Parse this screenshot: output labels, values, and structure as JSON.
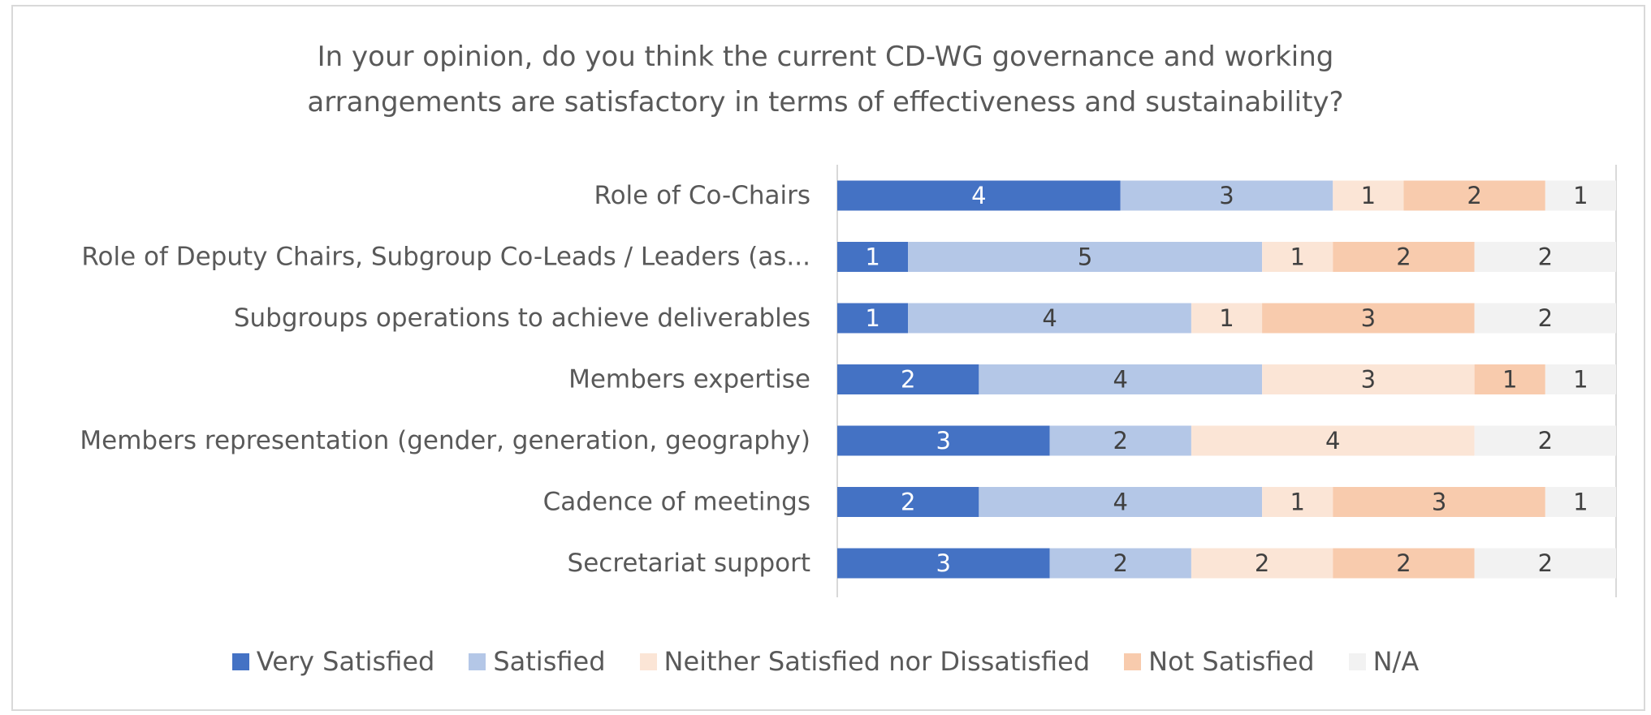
{
  "chart_data": {
    "type": "bar",
    "orientation": "horizontal-stacked",
    "title": [
      "In your opinion, do you think the  current CD-WG governance and working",
      "arrangements are satisfactory in terms of effectiveness and sustainability?"
    ],
    "categories": [
      "Role of Co-Chairs",
      "Role of Deputy Chairs, Subgroup Co-Leads / Leaders (as...",
      "Subgroups operations to achieve deliverables",
      "Members expertise",
      "Members representation (gender, generation, geography)",
      "Cadence of meetings",
      "Secretariat support"
    ],
    "series": [
      {
        "name": "Very Satisfied",
        "color": "#4472c4",
        "label_color": "#ffffff",
        "values": [
          4,
          1,
          1,
          2,
          3,
          2,
          3
        ]
      },
      {
        "name": "Satisfied",
        "color": "#b4c7e7",
        "label_color": "#404040",
        "values": [
          3,
          5,
          4,
          4,
          2,
          4,
          2
        ]
      },
      {
        "name": "Neither Satisfied nor Dissatisfied",
        "color": "#fbe5d6",
        "label_color": "#404040",
        "values": [
          1,
          1,
          1,
          3,
          4,
          1,
          2
        ]
      },
      {
        "name": "Not Satisfied",
        "color": "#f8cbad",
        "label_color": "#404040",
        "values": [
          2,
          2,
          3,
          1,
          0,
          3,
          2
        ]
      },
      {
        "name": "N/A",
        "color": "#f2f2f2",
        "label_color": "#404040",
        "values": [
          1,
          2,
          2,
          1,
          2,
          1,
          2
        ]
      }
    ],
    "xlim": [
      0,
      11
    ],
    "legend_position": "bottom",
    "grid": false
  }
}
